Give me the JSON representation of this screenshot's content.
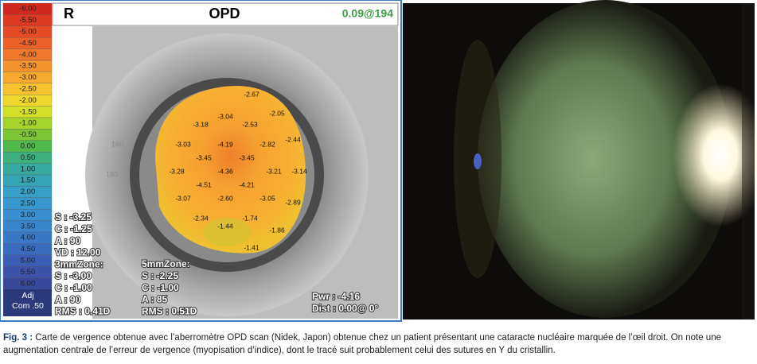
{
  "figure": {
    "scale": [
      {
        "label": "-6.00",
        "color": "#d0281e"
      },
      {
        "label": "-5.50",
        "color": "#dc3822"
      },
      {
        "label": "-5.00",
        "color": "#e44a26"
      },
      {
        "label": "-4.50",
        "color": "#ec602a"
      },
      {
        "label": "-4.00",
        "color": "#f0782c"
      },
      {
        "label": "-3.50",
        "color": "#f4922e"
      },
      {
        "label": "-3.00",
        "color": "#f6aa30"
      },
      {
        "label": "-2.50",
        "color": "#f5c230"
      },
      {
        "label": "-2.00",
        "color": "#efd82e"
      },
      {
        "label": "-1.50",
        "color": "#d2e02a"
      },
      {
        "label": "-1.00",
        "color": "#a6d42c"
      },
      {
        "label": "-0.50",
        "color": "#7cc636"
      },
      {
        "label": "0.00",
        "color": "#50b84a"
      },
      {
        "label": "0.50",
        "color": "#3cb07e"
      },
      {
        "label": "1.00",
        "color": "#36aaa0"
      },
      {
        "label": "1.50",
        "color": "#35a5b6"
      },
      {
        "label": "2.00",
        "color": "#36a0c6"
      },
      {
        "label": "2.50",
        "color": "#3898ce"
      },
      {
        "label": "3.00",
        "color": "#3a8fd0"
      },
      {
        "label": "3.50",
        "color": "#3a84cc"
      },
      {
        "label": "4.00",
        "color": "#3a78c6"
      },
      {
        "label": "4.50",
        "color": "#3a6cbe"
      },
      {
        "label": "5.00",
        "color": "#3a5eb4"
      },
      {
        "label": "5.50",
        "color": "#3a52a8"
      },
      {
        "label": "6.00",
        "color": "#384898"
      }
    ],
    "scale_footer": [
      "Adj",
      "Com .50"
    ],
    "header": {
      "eye": "R",
      "title": "OPD",
      "value": "0.09@194"
    },
    "ring_labels": [
      "160",
      "180"
    ],
    "map_values": [
      "-2.67",
      "-2.05",
      "-3.04",
      "-3.18",
      "-2.53",
      "-2.44",
      "-3.03",
      "-4.19",
      "-2.82",
      "-3.45",
      "-3.45",
      "-3.28",
      "-4.36",
      "-3.21",
      "-3.14",
      "-4.51",
      "-4.21",
      "-3.07",
      "-2.60",
      "-3.05",
      "-2.89",
      "-2.34",
      "-1.74",
      "-1.44",
      "-1.86",
      "-1.41"
    ],
    "info_left": [
      "S : -3.25",
      "C : -1.25",
      "A : 90",
      "VD : 12.00",
      "3mmZone:",
      "S : -3.00",
      "C : -1.00",
      "A : 90",
      "RMS : 0.41D"
    ],
    "info_mid": [
      "5mmZone:",
      "S : -2.25",
      "C : -1.00",
      "A : 85",
      "RMS : 0.51D"
    ],
    "info_right": [
      "Pwr : -4.16",
      "Dist : 0.00@ 0°"
    ]
  },
  "caption": {
    "label": "Fig. 3 :",
    "text": "Carte de vergence obtenue avec l’aberromètre OPD scan (Nidek, Japon) obtenue chez un patient présentant une cataracte nucléaire marquée de l’œil droit. On note une augmentation centrale de l’erreur de vergence (myopisation d’indice), dont le tracé suit probablement celui des sutures en Y du cristallin."
  }
}
